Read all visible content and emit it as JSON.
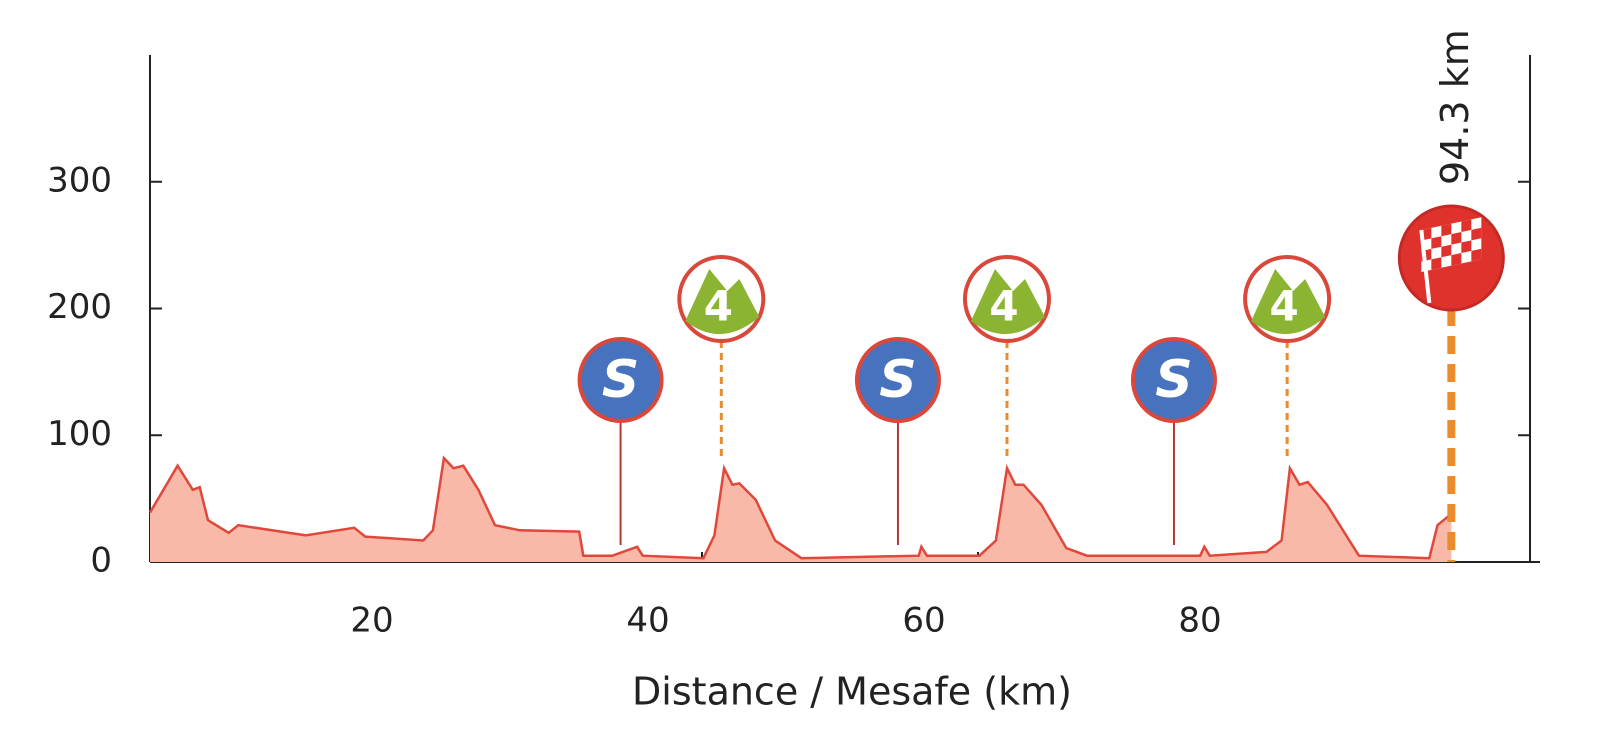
{
  "chart_data": {
    "type": "area",
    "xlabel": "Distance / Mesafe (km)",
    "x": [
      0,
      2,
      3.1,
      3.6,
      4.2,
      5.7,
      6.4,
      11.3,
      14.8,
      15.6,
      19.8,
      20.5,
      21.3,
      22,
      22.7,
      23.8,
      25,
      26.8,
      31.1,
      31.4,
      33.5,
      35.3,
      35.7,
      40.1,
      40.9,
      41.6,
      42.2,
      42.7,
      43.9,
      45.3,
      47.2,
      55.7,
      55.9,
      56.3,
      60.1,
      61.3,
      62.1,
      62.7,
      63.3,
      64.6,
      66.4,
      67.9,
      76.1,
      76.4,
      76.8,
      80.9,
      82,
      82.6,
      83.3,
      83.9,
      85.3,
      87.6,
      92.7,
      93.3,
      94.3
    ],
    "values": [
      39,
      76,
      57,
      59,
      33,
      23,
      29,
      21,
      27,
      20,
      17,
      25,
      82,
      74,
      76,
      57,
      29,
      25,
      24,
      5,
      5,
      12,
      5,
      3,
      21,
      74,
      61,
      62,
      49,
      17,
      3,
      5,
      12,
      5,
      5,
      17,
      74,
      61,
      61,
      45,
      11,
      5,
      5,
      12,
      5,
      8,
      17,
      74,
      61,
      63,
      45,
      5,
      3,
      29,
      38
    ],
    "color": "#f9b9a8",
    "line_color": "#e0483c",
    "xlim": [
      0,
      100
    ],
    "ylim": [
      0,
      400
    ],
    "xticks": [
      20,
      40,
      60,
      80
    ],
    "yticks": [
      0,
      100,
      200,
      300
    ],
    "sprints": [
      {
        "x": 34.1,
        "label": "S"
      },
      {
        "x": 54.2,
        "label": "S"
      },
      {
        "x": 74.2,
        "label": "S"
      }
    ],
    "climbs": [
      {
        "x": 41.4,
        "label": "4"
      },
      {
        "x": 62.1,
        "label": "4"
      },
      {
        "x": 82.4,
        "label": "4"
      }
    ],
    "finish": {
      "x": 94.3,
      "label": "94.3 km"
    }
  }
}
